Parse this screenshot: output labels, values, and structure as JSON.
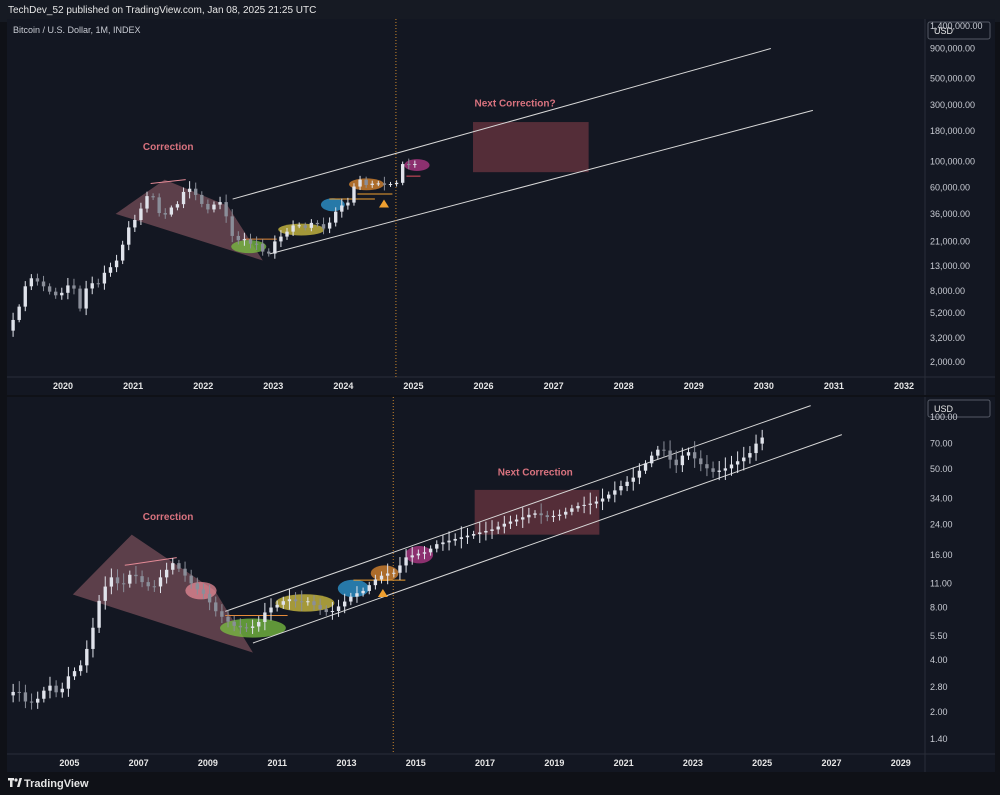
{
  "header": {
    "text": "TechDev_52 published on TradingView.com, Jan 08, 2025 21:25 UTC"
  },
  "footer": {
    "logo_icon": "tradingview-logo-icon",
    "brand": "TradingView"
  },
  "colors": {
    "up": "#e0e3eb",
    "down": "#8a8e99",
    "channel": "#d8d8d8",
    "annotation": "#d9737f",
    "box": "#8a3f4a",
    "triangle": "#e48a96",
    "current_marker": "#f0a030",
    "vline": "#c9862e"
  },
  "chart_data": [
    {
      "type": "candlestick",
      "title": "Bitcoin / U.S. Dollar, 1M, INDEX",
      "currency": "USD",
      "y_scale": "log",
      "ylim": [
        1500,
        1600000
      ],
      "xlim": [
        2019.2,
        2032.3
      ],
      "x_ticks": [
        "2020",
        "2021",
        "2022",
        "2023",
        "2024",
        "2025",
        "2026",
        "2027",
        "2028",
        "2029",
        "2030",
        "2031",
        "2032"
      ],
      "y_ticks": [
        "1,400,000.00",
        "900,000.00",
        "500,000.00",
        "300,000.00",
        "180,000.00",
        "100,000.00",
        "60,000.00",
        "36,000.00",
        "21,000.00",
        "13,000.00",
        "8,000.00",
        "5,200.00",
        "3,200.00",
        "2,000.00"
      ],
      "y_tick_values": [
        1400000,
        900000,
        500000,
        300000,
        180000,
        100000,
        60000,
        36000,
        21000,
        13000,
        8000,
        5200,
        3200,
        2000
      ],
      "price_path": [
        [
          2019.2,
          3700
        ],
        [
          2019.35,
          5300
        ],
        [
          2019.5,
          10500
        ],
        [
          2019.6,
          10000
        ],
        [
          2019.75,
          8500
        ],
        [
          2019.85,
          7500
        ],
        [
          2019.95,
          7200
        ],
        [
          2020.05,
          9000
        ],
        [
          2020.15,
          8600
        ],
        [
          2020.25,
          5500
        ],
        [
          2020.35,
          9400
        ],
        [
          2020.5,
          9200
        ],
        [
          2020.6,
          11700
        ],
        [
          2020.75,
          13800
        ],
        [
          2020.85,
          19700
        ],
        [
          2020.95,
          29000
        ],
        [
          2021.05,
          33000
        ],
        [
          2021.15,
          45000
        ],
        [
          2021.25,
          58000
        ],
        [
          2021.35,
          37000
        ],
        [
          2021.45,
          35000
        ],
        [
          2021.55,
          41000
        ],
        [
          2021.65,
          44000
        ],
        [
          2021.75,
          61000
        ],
        [
          2021.85,
          57000
        ],
        [
          2021.95,
          46000
        ],
        [
          2022.05,
          38500
        ],
        [
          2022.15,
          43000
        ],
        [
          2022.25,
          45500
        ],
        [
          2022.35,
          31500
        ],
        [
          2022.45,
          19800
        ],
        [
          2022.55,
          23300
        ],
        [
          2022.65,
          20000
        ],
        [
          2022.75,
          20500
        ],
        [
          2022.85,
          17200
        ],
        [
          2022.95,
          16500
        ],
        [
          2023.05,
          23100
        ],
        [
          2023.15,
          23100
        ],
        [
          2023.25,
          28500
        ],
        [
          2023.35,
          29200
        ],
        [
          2023.45,
          27200
        ],
        [
          2023.55,
          30400
        ],
        [
          2023.65,
          29200
        ],
        [
          2023.75,
          26000
        ],
        [
          2023.85,
          34600
        ],
        [
          2023.95,
          42300
        ],
        [
          2024.05,
          42500
        ],
        [
          2024.15,
          61100
        ],
        [
          2024.25,
          71300
        ],
        [
          2024.35,
          60600
        ],
        [
          2024.45,
          67500
        ],
        [
          2024.55,
          62700
        ],
        [
          2024.65,
          64600
        ],
        [
          2024.75,
          63300
        ],
        [
          2024.85,
          96400
        ],
        [
          2024.95,
          93400
        ],
        [
          2025.02,
          95000
        ]
      ],
      "channel_upper": [
        [
          2022.42,
          48000
        ],
        [
          2030.1,
          900000
        ]
      ],
      "channel_lower": [
        [
          2022.95,
          16500
        ],
        [
          2030.7,
          270000
        ]
      ],
      "triangle": [
        [
          2020.75,
          36000
        ],
        [
          2021.45,
          70000
        ],
        [
          2022.35,
          42000
        ],
        [
          2022.85,
          14500
        ]
      ],
      "correction_top_line": [
        [
          2021.25,
          65000
        ],
        [
          2021.75,
          70000
        ]
      ],
      "ellipses": [
        {
          "x": 2022.65,
          "y": 19000,
          "rx": 0.25,
          "ry": 0.055,
          "color": "#7bc142"
        },
        {
          "x": 2023.4,
          "y": 26500,
          "rx": 0.33,
          "ry": 0.05,
          "color": "#d6c442"
        },
        {
          "x": 2023.85,
          "y": 43000,
          "rx": 0.17,
          "ry": 0.055,
          "color": "#2f9bd6"
        },
        {
          "x": 2024.33,
          "y": 64000,
          "rx": 0.25,
          "ry": 0.05,
          "color": "#e08a2f"
        },
        {
          "x": 2025.05,
          "y": 93000,
          "rx": 0.18,
          "ry": 0.05,
          "color": "#b53a8a"
        }
      ],
      "support_lines": [
        {
          "x1": 2022.6,
          "x2": 2023.05,
          "y": 22000,
          "color": "#e58a3a"
        },
        {
          "x1": 2023.8,
          "x2": 2024.45,
          "y": 48000,
          "color": "#f0a030"
        },
        {
          "x1": 2024.2,
          "x2": 2024.7,
          "y": 53000,
          "color": "#f0a030"
        },
        {
          "x1": 2024.9,
          "x2": 2025.1,
          "y": 75000,
          "color": "#e05060"
        }
      ],
      "marker": {
        "x": 2024.58,
        "y": 44000
      },
      "box": {
        "x1": 2025.85,
        "x2": 2027.5,
        "y1": 81000,
        "y2": 215000
      },
      "vline_x": 2024.75,
      "annotations": [
        {
          "text": "Correction",
          "x": 2021.5,
          "y": 125000
        },
        {
          "text": "Next Correction?",
          "x": 2026.45,
          "y": 290000
        }
      ]
    },
    {
      "type": "candlestick",
      "title": "",
      "currency": "USD",
      "y_scale": "log",
      "ylim": [
        1.15,
        130
      ],
      "xlim": [
        2003.2,
        2029.7
      ],
      "x_ticks": [
        "2005",
        "2007",
        "2009",
        "2011",
        "2013",
        "2015",
        "2017",
        "2019",
        "2021",
        "2023",
        "2025",
        "2027",
        "2029"
      ],
      "y_ticks": [
        "100.00",
        "70.00",
        "50.00",
        "34.00",
        "24.00",
        "16.00",
        "11.00",
        "8.00",
        "5.50",
        "4.00",
        "2.80",
        "2.00",
        "1.40"
      ],
      "y_tick_values": [
        100,
        70,
        50,
        34,
        24,
        16,
        11,
        8,
        5.5,
        4,
        2.8,
        2,
        1.4
      ],
      "price_path": [
        [
          2003.2,
          2.5
        ],
        [
          2003.5,
          2.7
        ],
        [
          2003.8,
          2.2
        ],
        [
          2004.1,
          2.4
        ],
        [
          2004.4,
          2.9
        ],
        [
          2004.7,
          2.5
        ],
        [
          2005.0,
          3.3
        ],
        [
          2005.3,
          3.6
        ],
        [
          2005.6,
          5.2
        ],
        [
          2005.9,
          9.5
        ],
        [
          2006.2,
          12
        ],
        [
          2006.5,
          10.5
        ],
        [
          2006.8,
          12.8
        ],
        [
          2007.1,
          11.2
        ],
        [
          2007.4,
          10.2
        ],
        [
          2007.7,
          12.5
        ],
        [
          2008.0,
          14.5
        ],
        [
          2008.3,
          12.5
        ],
        [
          2008.6,
          10.5
        ],
        [
          2008.9,
          9.5
        ],
        [
          2009.2,
          7.7
        ],
        [
          2009.5,
          6.8
        ],
        [
          2009.8,
          6.2
        ],
        [
          2010.1,
          6.1
        ],
        [
          2010.4,
          6.3
        ],
        [
          2010.7,
          7.8
        ],
        [
          2011.0,
          8.3
        ],
        [
          2011.3,
          9.0
        ],
        [
          2011.6,
          8.6
        ],
        [
          2011.9,
          8.7
        ],
        [
          2012.2,
          7.9
        ],
        [
          2012.5,
          7.4
        ],
        [
          2012.8,
          8.2
        ],
        [
          2013.2,
          9.5
        ],
        [
          2013.5,
          10.0
        ],
        [
          2013.8,
          11.5
        ],
        [
          2014.1,
          12.5
        ],
        [
          2014.4,
          12.7
        ],
        [
          2014.7,
          15.5
        ],
        [
          2015.0,
          16.2
        ],
        [
          2015.3,
          16.7
        ],
        [
          2015.6,
          18.5
        ],
        [
          2016.0,
          19.5
        ],
        [
          2016.4,
          20.5
        ],
        [
          2016.8,
          21.5
        ],
        [
          2017.2,
          22.5
        ],
        [
          2017.6,
          24.5
        ],
        [
          2018.0,
          26
        ],
        [
          2018.4,
          28
        ],
        [
          2018.8,
          26.5
        ],
        [
          2019.2,
          27.5
        ],
        [
          2019.6,
          30.5
        ],
        [
          2020.0,
          31.5
        ],
        [
          2020.3,
          33
        ],
        [
          2020.6,
          36
        ],
        [
          2021.0,
          41
        ],
        [
          2021.3,
          45
        ],
        [
          2021.6,
          53
        ],
        [
          2021.9,
          63
        ],
        [
          2022.1,
          67
        ],
        [
          2022.3,
          58
        ],
        [
          2022.5,
          52
        ],
        [
          2022.7,
          60
        ],
        [
          2022.9,
          63
        ],
        [
          2023.1,
          56
        ],
        [
          2023.3,
          52
        ],
        [
          2023.6,
          48
        ],
        [
          2023.9,
          50
        ],
        [
          2024.1,
          53
        ],
        [
          2024.4,
          57
        ],
        [
          2024.7,
          63
        ],
        [
          2024.9,
          75
        ],
        [
          2025.0,
          76
        ]
      ],
      "channel_upper": [
        [
          2009.5,
          7.6
        ],
        [
          2026.4,
          116
        ]
      ],
      "channel_lower": [
        [
          2010.3,
          5.0
        ],
        [
          2027.3,
          79
        ]
      ],
      "triangle": [
        [
          2005.1,
          9.5
        ],
        [
          2006.8,
          21
        ],
        [
          2009.2,
          10
        ],
        [
          2010.3,
          4.4
        ]
      ],
      "correction_top_line": [
        [
          2006.6,
          14
        ],
        [
          2008.1,
          15.5
        ]
      ],
      "ellipses": [
        {
          "x": 2008.8,
          "y": 10.0,
          "rx": 0.45,
          "ry": 0.05,
          "color": "#e48a96"
        },
        {
          "x": 2010.3,
          "y": 6.1,
          "rx": 0.95,
          "ry": 0.055,
          "color": "#7bc142"
        },
        {
          "x": 2011.8,
          "y": 8.5,
          "rx": 0.85,
          "ry": 0.05,
          "color": "#d6c442"
        },
        {
          "x": 2013.2,
          "y": 10.3,
          "rx": 0.45,
          "ry": 0.05,
          "color": "#2f9bd6"
        },
        {
          "x": 2014.1,
          "y": 12.6,
          "rx": 0.4,
          "ry": 0.045,
          "color": "#e08a2f"
        },
        {
          "x": 2015.1,
          "y": 16.1,
          "rx": 0.4,
          "ry": 0.05,
          "color": "#b53a8a"
        }
      ],
      "support_lines": [
        {
          "x1": 2013.2,
          "x2": 2014.7,
          "y": 11.5,
          "color": "#f0a030"
        },
        {
          "x1": 2009.5,
          "x2": 2011.3,
          "y": 7.2,
          "color": "#e58a3a"
        }
      ],
      "marker": {
        "x": 2014.05,
        "y": 9.7
      },
      "box": {
        "x1": 2016.7,
        "x2": 2020.3,
        "y1": 21,
        "y2": 38
      },
      "vline_x": 2014.35,
      "annotations": [
        {
          "text": "Correction",
          "x": 2007.85,
          "y": 25.5
        },
        {
          "text": "Next Correction",
          "x": 2018.45,
          "y": 46
        }
      ]
    }
  ]
}
